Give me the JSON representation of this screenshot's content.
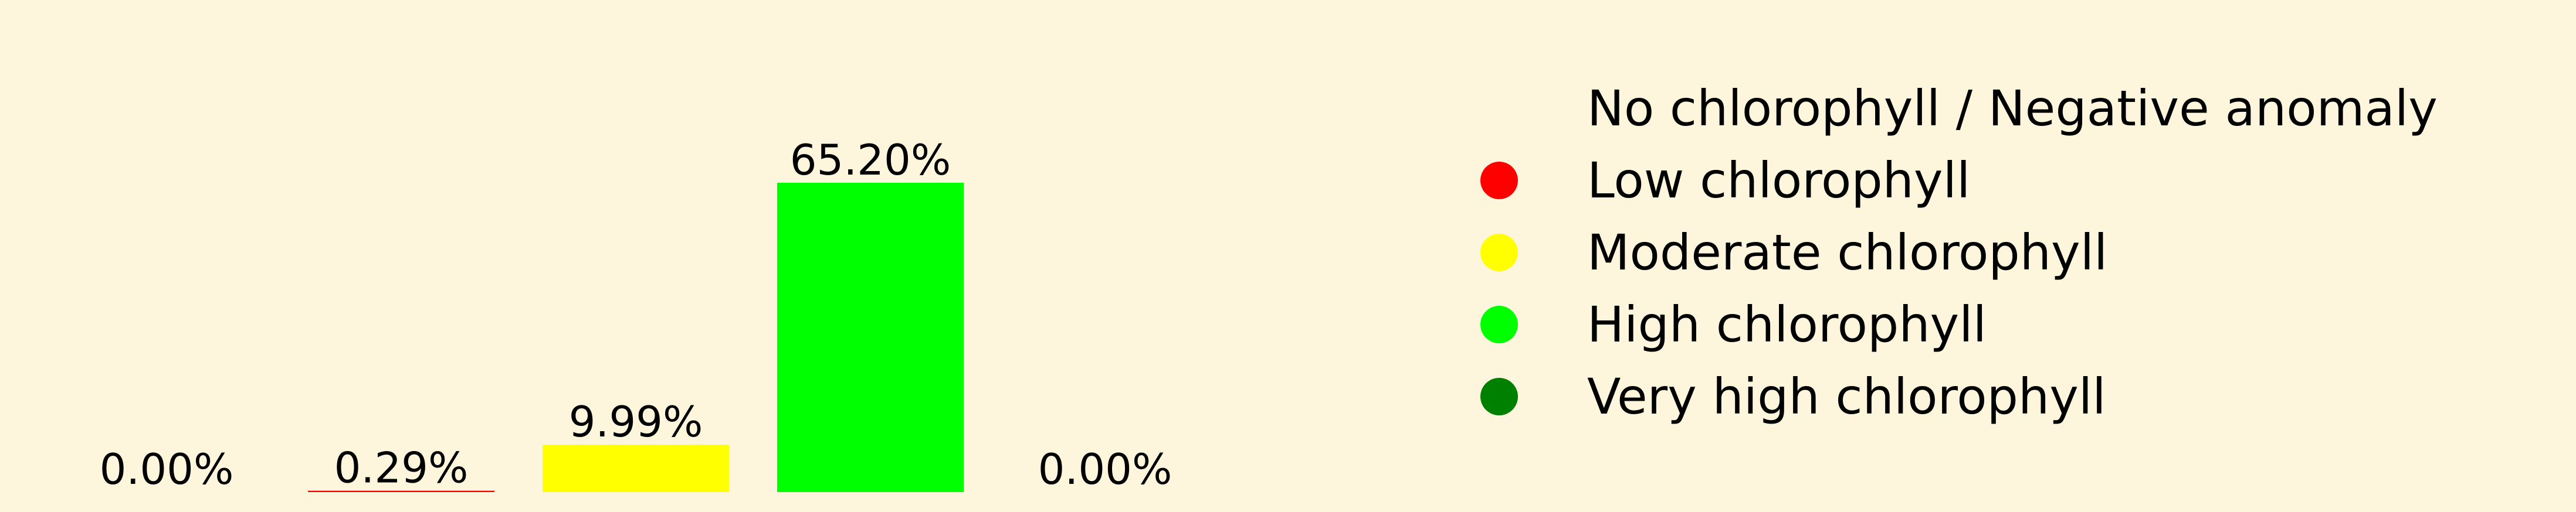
{
  "chart_data": {
    "type": "bar",
    "categories": [
      "No chlorophyll / Negative anomaly",
      "Low chlorophyll",
      "Moderate chlorophyll",
      "High chlorophyll",
      "Very high chlorophyll"
    ],
    "values": [
      0.0,
      0.29,
      9.99,
      65.2,
      0.0
    ],
    "data_labels": [
      "0.00%",
      "0.29%",
      "9.99%",
      "65.20%",
      "0.00%"
    ],
    "colors": [
      "#fdf6dc",
      "#ff0000",
      "#ffff00",
      "#00ff00",
      "#008000"
    ],
    "ylim": [
      0,
      65.2
    ],
    "legend": {
      "placement": "right",
      "entries": [
        {
          "label": "No chlorophyll / Negative anomaly",
          "color": "#fdf6dc"
        },
        {
          "label": "Low chlorophyll",
          "color": "#ff0000"
        },
        {
          "label": "Moderate chlorophyll",
          "color": "#ffff00"
        },
        {
          "label": "High chlorophyll",
          "color": "#00ff00"
        },
        {
          "label": "Very high chlorophyll",
          "color": "#008000"
        }
      ]
    },
    "grid": false,
    "axes_visible": false
  },
  "background_color": "#fdf6dc"
}
